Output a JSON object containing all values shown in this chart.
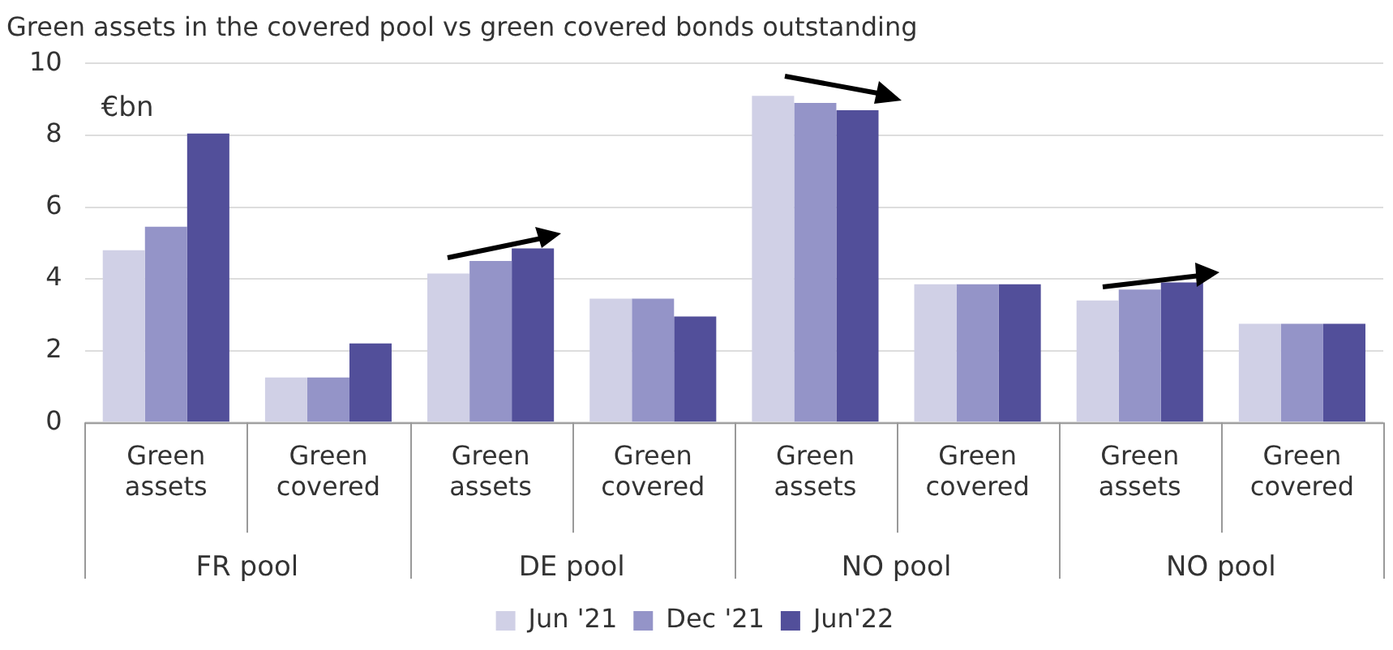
{
  "chart_data": {
    "type": "bar",
    "title": "Green assets in the covered pool vs green covered bonds outstanding",
    "ylabel": "€bn",
    "categories": [
      "Green assets",
      "Green covered",
      "Green assets",
      "Green covered",
      "Green assets",
      "Green covered",
      "Green assets",
      "Green covered"
    ],
    "series": [
      {
        "name": "Jun '21",
        "color": "#d0d0e6",
        "values": [
          4.8,
          1.25,
          4.15,
          3.45,
          9.1,
          3.85,
          3.4,
          2.75
        ]
      },
      {
        "name": "Dec '21",
        "color": "#9494c8",
        "values": [
          5.45,
          1.25,
          4.5,
          3.45,
          8.9,
          3.85,
          3.7,
          2.75
        ]
      },
      {
        "name": "Jun'22",
        "color": "#524f9a",
        "values": [
          8.05,
          2.2,
          4.85,
          2.95,
          8.7,
          3.85,
          3.9,
          2.75
        ]
      }
    ],
    "annotations": [
      "FR pool",
      "DE pool",
      "NO pool",
      "NO pool"
    ],
    "ylim": [
      0,
      10
    ],
    "yticks": [
      0,
      2,
      4,
      6,
      8,
      10
    ],
    "grid": "y",
    "legend": "bottom"
  }
}
